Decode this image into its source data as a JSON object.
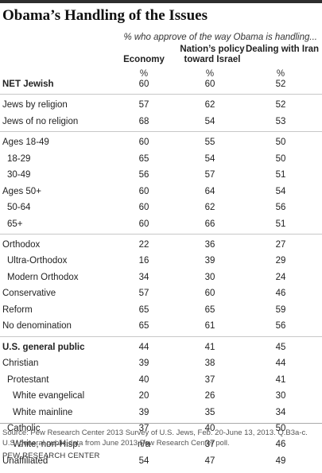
{
  "chart_data": {
    "type": "table",
    "title": "Obama’s Handling of the Issues",
    "subtitle": "% who approve of the way Obama is handling...",
    "columns": [
      "Economy",
      "Nation’s policy toward Israel",
      "Dealing with Iran"
    ],
    "unit_row": [
      "%",
      "%",
      "%"
    ],
    "rows": [
      {
        "label": "NET Jewish",
        "bold": true,
        "indent": 0,
        "values": [
          "60",
          "60",
          "52"
        ]
      },
      {
        "label": "Jews by religion",
        "bold": false,
        "indent": 0,
        "values": [
          "57",
          "62",
          "52"
        ]
      },
      {
        "label": "Jews of no religion",
        "bold": false,
        "indent": 0,
        "values": [
          "68",
          "54",
          "53"
        ]
      },
      {
        "label": "Ages 18-49",
        "bold": false,
        "indent": 0,
        "values": [
          "60",
          "55",
          "50"
        ]
      },
      {
        "label": "18-29",
        "bold": false,
        "indent": 1,
        "values": [
          "65",
          "54",
          "50"
        ]
      },
      {
        "label": "30-49",
        "bold": false,
        "indent": 1,
        "values": [
          "56",
          "57",
          "51"
        ]
      },
      {
        "label": "Ages 50+",
        "bold": false,
        "indent": 0,
        "values": [
          "60",
          "64",
          "54"
        ]
      },
      {
        "label": "50-64",
        "bold": false,
        "indent": 1,
        "values": [
          "60",
          "62",
          "56"
        ]
      },
      {
        "label": "65+",
        "bold": false,
        "indent": 1,
        "values": [
          "60",
          "66",
          "51"
        ]
      },
      {
        "label": "Orthodox",
        "bold": false,
        "indent": 0,
        "values": [
          "22",
          "36",
          "27"
        ]
      },
      {
        "label": "Ultra-Orthodox",
        "bold": false,
        "indent": 1,
        "values": [
          "16",
          "39",
          "29"
        ]
      },
      {
        "label": "Modern Orthodox",
        "bold": false,
        "indent": 1,
        "values": [
          "34",
          "30",
          "24"
        ]
      },
      {
        "label": "Conservative",
        "bold": false,
        "indent": 0,
        "values": [
          "57",
          "60",
          "46"
        ]
      },
      {
        "label": "Reform",
        "bold": false,
        "indent": 0,
        "values": [
          "65",
          "65",
          "59"
        ]
      },
      {
        "label": "No denomination",
        "bold": false,
        "indent": 0,
        "values": [
          "65",
          "61",
          "56"
        ]
      },
      {
        "label": "U.S. general public",
        "bold": true,
        "indent": 0,
        "values": [
          "44",
          "41",
          "45"
        ]
      },
      {
        "label": "Christian",
        "bold": false,
        "indent": 0,
        "values": [
          "39",
          "38",
          "44"
        ]
      },
      {
        "label": "Protestant",
        "bold": false,
        "indent": 1,
        "values": [
          "40",
          "37",
          "41"
        ]
      },
      {
        "label": "White evangelical",
        "bold": false,
        "indent": 2,
        "values": [
          "20",
          "26",
          "30"
        ]
      },
      {
        "label": "White mainline",
        "bold": false,
        "indent": 2,
        "values": [
          "39",
          "35",
          "34"
        ]
      },
      {
        "label": "Catholic",
        "bold": false,
        "indent": 1,
        "values": [
          "37",
          "40",
          "50"
        ]
      },
      {
        "label": "White, non-Hisp.",
        "bold": false,
        "indent": 2,
        "values": [
          "n/a",
          "37",
          "46"
        ]
      },
      {
        "label": "Unaffiliated",
        "bold": false,
        "indent": 0,
        "values": [
          "54",
          "47",
          "49"
        ]
      }
    ],
    "groups": [
      [
        0
      ],
      [
        1,
        2
      ],
      [
        3,
        4,
        5,
        6,
        7,
        8
      ],
      [
        9,
        10,
        11,
        12,
        13,
        14
      ],
      [
        15,
        16,
        17,
        18,
        19,
        20,
        21,
        22
      ]
    ]
  },
  "source": "Source: Pew Research Center 2013 Survey of U.S. Jews, Feb. 20-June 13, 2013. Q.B3a-c. U.S. general public data from June 2013 Pew Research Center poll.",
  "brand": "PEW RESEARCH CENTER"
}
